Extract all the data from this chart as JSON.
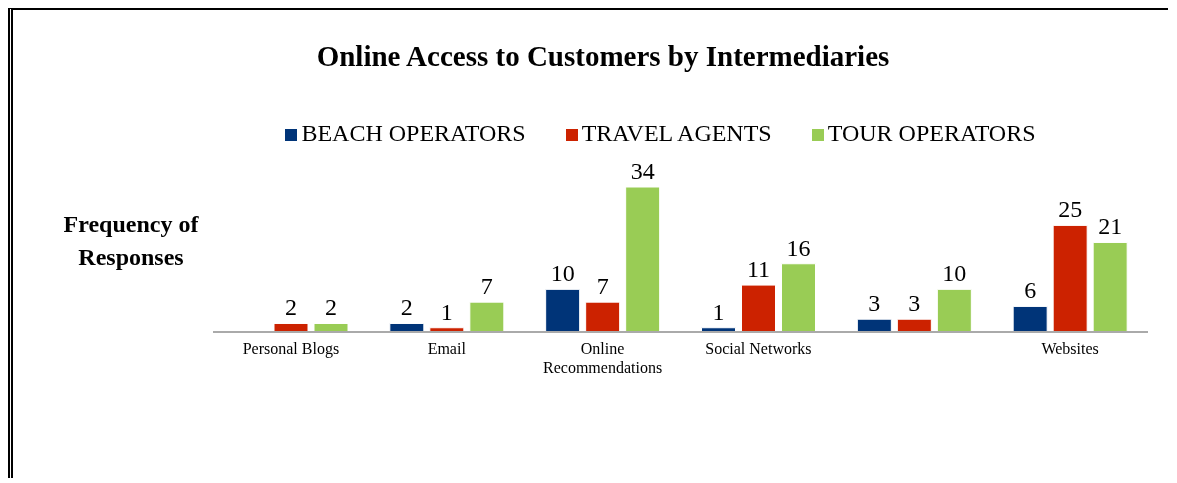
{
  "chart_data": {
    "type": "bar",
    "title": "Online Access to Customers by Intermediaries",
    "ylabel": "Frequency of Responses",
    "categories": [
      "Personal Blogs",
      "Email",
      "Online Recommendations",
      "Social Networks",
      null,
      "Websites"
    ],
    "series": [
      {
        "name": "BEACH OPERATORS",
        "color": "#003478",
        "values": [
          null,
          2,
          10,
          1,
          3,
          6
        ]
      },
      {
        "name": "TRAVEL AGENTS",
        "color": "#cc2200",
        "values": [
          2,
          1,
          7,
          11,
          3,
          25
        ]
      },
      {
        "name": "TOUR OPERATORS",
        "color": "#99cc55",
        "values": [
          2,
          7,
          34,
          16,
          10,
          21
        ]
      }
    ],
    "legend": "top",
    "data_labels": true,
    "grid": false
  }
}
